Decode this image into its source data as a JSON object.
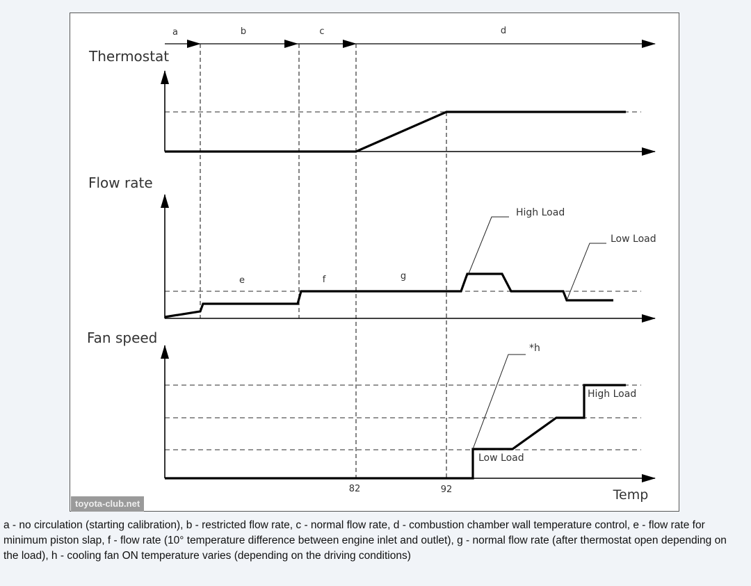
{
  "diagram": {
    "phases": [
      "a",
      "b",
      "c",
      "d"
    ],
    "panels": {
      "thermostat": {
        "title": "Thermostat"
      },
      "flow_rate": {
        "title": "Flow rate",
        "segment_labels": [
          "e",
          "f",
          "g"
        ],
        "callouts": [
          "High Load",
          "Low Load"
        ]
      },
      "fan_speed": {
        "title": "Fan speed",
        "callout": "*h",
        "labels": [
          "High Load",
          "Low Load"
        ]
      }
    },
    "x_axis": {
      "ticks": [
        "82",
        "92"
      ],
      "label": "Temp"
    },
    "watermark": "toyota-club.net"
  },
  "caption": "a - no circulation (starting calibration), b - restricted flow rate, c - normal flow rate, d - combustion chamber wall temperature control, e - flow rate for minimum piston slap, f - flow rate (10° temperature difference between engine inlet and outlet), g - normal flow rate (after thermostat open depending on the load), h - cooling fan ON temperature varies (depending on the driving conditions)"
}
